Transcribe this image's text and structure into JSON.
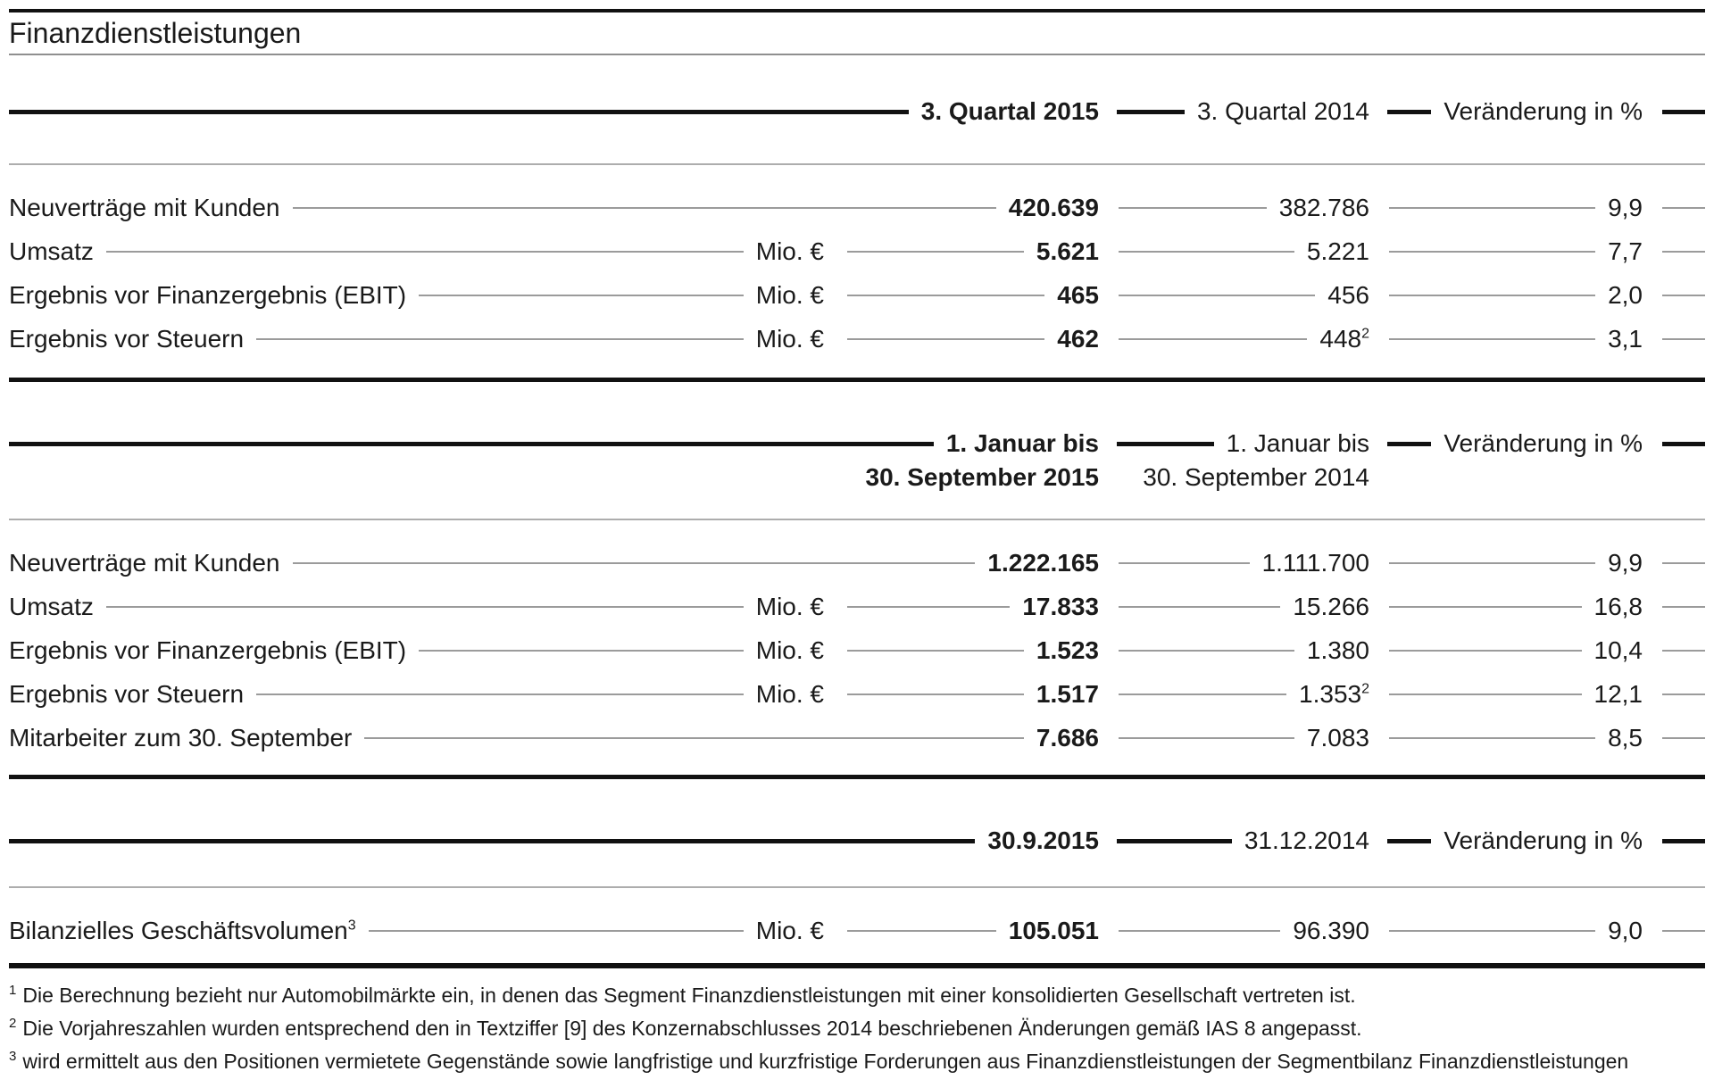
{
  "title": "Finanzdienstleistungen",
  "sections": [
    {
      "header": {
        "col1_line1": "3. Quartal 2015",
        "col2_line1": "3. Quartal 2014",
        "col3": "Veränderung in %"
      },
      "rows": [
        {
          "css": "row",
          "label": "Neuverträge mit Kunden",
          "unit": "",
          "v1": "420.639",
          "v2": "382.786",
          "v3": "9,9"
        },
        {
          "css": "row has-unit",
          "label": "Umsatz",
          "unit": "Mio. €",
          "v1": "5.621",
          "v2": "5.221",
          "v3": "7,7"
        },
        {
          "css": "row has-unit",
          "label": "Ergebnis vor Finanzergebnis (EBIT)",
          "unit": "Mio. €",
          "v1": "465",
          "v2": "456",
          "v3": "2,0"
        },
        {
          "css": "row has-unit",
          "label": "Ergebnis vor Steuern",
          "unit": "Mio. €",
          "v1": "462",
          "v2": "448",
          "v2_sup": "2",
          "v3": "3,1"
        }
      ]
    },
    {
      "header": {
        "col1_line1": "1. Januar bis",
        "col1_line2": "30. September 2015",
        "col2_line1": "1. Januar bis",
        "col2_line2": "30. September 2014",
        "col3": "Veränderung in %"
      },
      "rows": [
        {
          "css": "row",
          "label": "Neuverträge mit Kunden",
          "unit": "",
          "v1": "1.222.165",
          "v2": "1.111.700",
          "v3": "9,9"
        },
        {
          "css": "row has-unit",
          "label": "Umsatz",
          "unit": "Mio. €",
          "v1": "17.833",
          "v2": "15.266",
          "v3": "16,8"
        },
        {
          "css": "row has-unit",
          "label": "Ergebnis vor Finanzergebnis (EBIT)",
          "unit": "Mio. €",
          "v1": "1.523",
          "v2": "1.380",
          "v3": "10,4"
        },
        {
          "css": "row has-unit",
          "label": "Ergebnis vor Steuern",
          "unit": "Mio. €",
          "v1": "1.517",
          "v2": "1.353",
          "v2_sup": "2",
          "v3": "12,1"
        },
        {
          "css": "row",
          "label": "Mitarbeiter zum 30. September",
          "unit": "",
          "v1": "7.686",
          "v2": "7.083",
          "v3": "8,5"
        }
      ]
    },
    {
      "header": {
        "col1_line1": "30.9.2015",
        "col2_line1": "31.12.2014",
        "col3": "Veränderung in %"
      },
      "rows": [
        {
          "css": "row has-unit",
          "label": "Bilanzielles Geschäftsvolumen",
          "label_sup": "3",
          "unit": "Mio. €",
          "v1": "105.051",
          "v2": "96.390",
          "v3": "9,0"
        }
      ]
    }
  ],
  "footnotes": [
    {
      "sup": "1",
      "text": "Die Berechnung bezieht nur Automobilmärkte ein, in denen das Segment Finanzdienstleistungen mit einer konsolidierten Gesellschaft vertreten ist."
    },
    {
      "sup": "2",
      "text": "Die Vorjahreszahlen wurden entsprechend den in Textziffer [9] des Konzernabschlusses 2014 beschriebenen Änderungen gemäß IAS 8 angepasst."
    },
    {
      "sup": "3",
      "text": "wird ermittelt aus den Positionen vermietete Gegenstände sowie langfristige und kurzfristige Forderungen aus Finanzdienstleistungen der Segmentbilanz Finanzdienstleistungen"
    }
  ],
  "colors": {
    "text": "#1a1a1a",
    "rule_black": "#111111",
    "leader_gray": "#9b9b9b",
    "separator_gray": "#adadad"
  }
}
